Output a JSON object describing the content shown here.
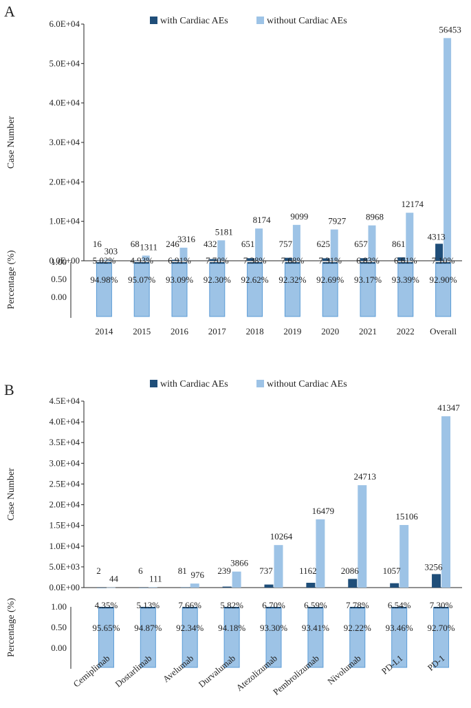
{
  "legend": {
    "with": "with Cardiac AEs",
    "without": "without Cardiac AEs"
  },
  "colors": {
    "with": "#1f4e79",
    "without": "#9dc3e6",
    "pct_box": "#9dc3e6",
    "pct_border": "#5b9bd5"
  },
  "chart_data": [
    {
      "type": "bar",
      "panel_label": "A",
      "ylabel": "Case Number",
      "pct_ylabel": "Percentage (%)",
      "ylim": [
        0,
        60000
      ],
      "yticks": [
        "0.0E+00",
        "1.0E+04",
        "2.0E+04",
        "3.0E+04",
        "4.0E+04",
        "5.0E+04",
        "6.0E+04"
      ],
      "pct_yticks": [
        "0.00",
        "0.50",
        "1.00"
      ],
      "categories": [
        "2014",
        "2015",
        "2016",
        "2017",
        "2018",
        "2019",
        "2020",
        "2021",
        "2022",
        "Overall"
      ],
      "series": [
        {
          "name": "with Cardiac AEs",
          "values": [
            16,
            68,
            246,
            432,
            651,
            757,
            625,
            657,
            861,
            4313
          ]
        },
        {
          "name": "without Cardiac AEs",
          "values": [
            303,
            1311,
            3316,
            5181,
            8174,
            9099,
            7927,
            8968,
            12174,
            56453
          ]
        }
      ],
      "pct_with": [
        "5.02%",
        "4.93%",
        "6.91%",
        "7.70%",
        "7.38%",
        "7.68%",
        "7.31%",
        "6.83%",
        "6.61%",
        "7.10%"
      ],
      "pct_without": [
        "94.98%",
        "95.07%",
        "93.09%",
        "92.30%",
        "92.62%",
        "92.32%",
        "92.69%",
        "93.17%",
        "93.39%",
        "92.90%"
      ]
    },
    {
      "type": "bar",
      "panel_label": "B",
      "ylabel": "Case Number",
      "pct_ylabel": "Percentage (%)",
      "ylim": [
        0,
        45000
      ],
      "yticks": [
        "0.0E+00",
        "5.0E+03",
        "1.0E+04",
        "1.5E+04",
        "2.0E+04",
        "2.5E+04",
        "3.0E+04",
        "3.5E+04",
        "4.0E+04",
        "4.5E+04"
      ],
      "pct_yticks": [
        "0.00",
        "0.50",
        "1.00"
      ],
      "categories": [
        "Cemiplimab",
        "Dostarlimab",
        "Avelumab",
        "Durvalumab",
        "Atezolizumab",
        "Pembrolizumab",
        "Nivolumab",
        "PD-L1",
        "PD-1"
      ],
      "series": [
        {
          "name": "with Cardiac AEs",
          "values": [
            2,
            6,
            81,
            239,
            737,
            1162,
            2086,
            1057,
            3256
          ]
        },
        {
          "name": "without Cardiac AEs",
          "values": [
            44,
            111,
            976,
            3866,
            10264,
            16479,
            24713,
            15106,
            41347
          ]
        }
      ],
      "pct_with": [
        "4.35%",
        "5.13%",
        "7.66%",
        "5.82%",
        "6.70%",
        "6.59%",
        "7.78%",
        "6.54%",
        "7.30%"
      ],
      "pct_without": [
        "95.65%",
        "94.87%",
        "92.34%",
        "94.18%",
        "93.30%",
        "93.41%",
        "92.22%",
        "93.46%",
        "92.70%"
      ]
    }
  ]
}
